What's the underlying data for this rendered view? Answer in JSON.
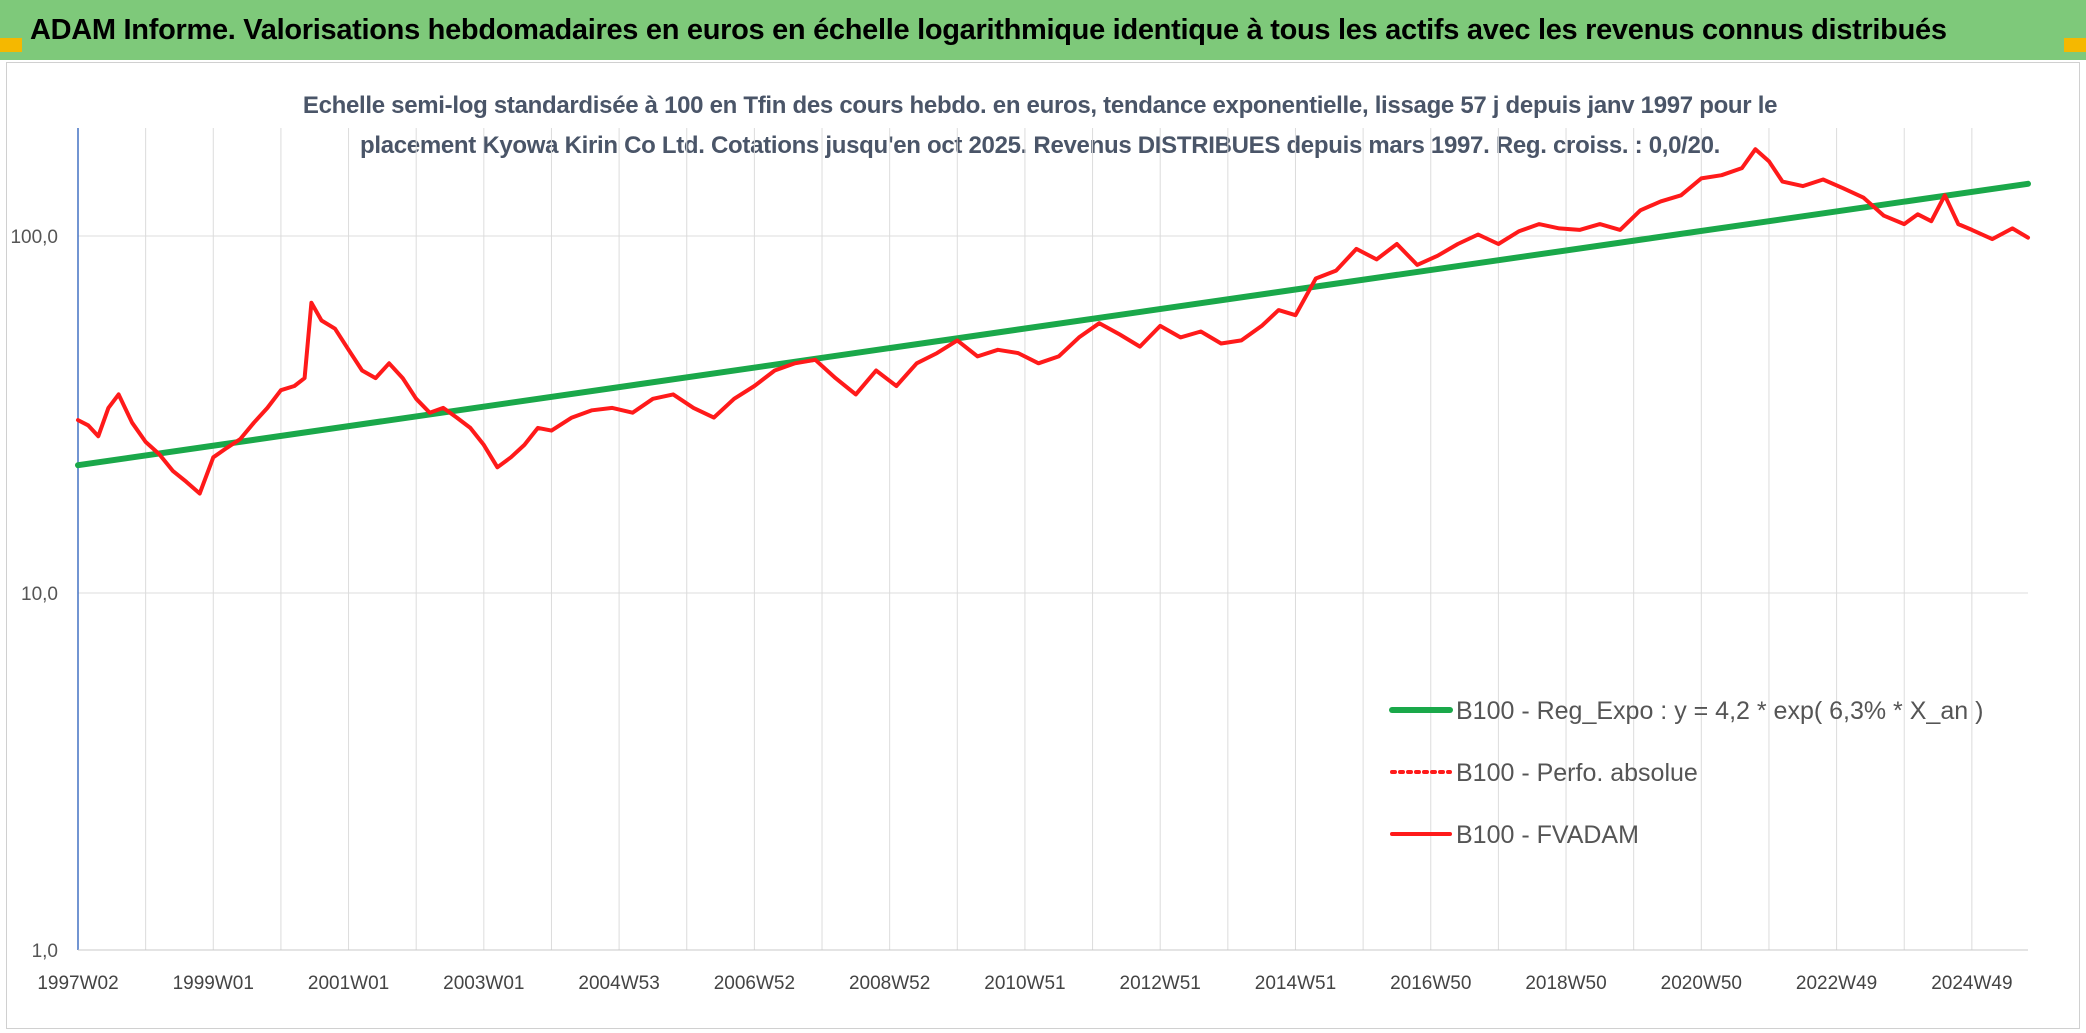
{
  "header": {
    "title": "ADAM Informe. Valorisations hebdomadaires en euros en échelle logarithmique identique à tous les actifs avec les revenus connus distribués"
  },
  "chart_data": {
    "type": "line",
    "title_line1": "Echelle semi-log standardisée à 100 en Tfin des cours hebdo. en euros, tendance exponentielle, lissage 57 j depuis janv 1997 pour le",
    "title_line2": "placement Kyowa Kirin Co Ltd. Cotations jusqu'en oct 2025. Revenus DISTRIBUES depuis mars 1997. Reg. croiss. : 0,0/20.",
    "y_scale": "log",
    "ylim": [
      1,
      200
    ],
    "xlim": [
      1997.0,
      2025.83
    ],
    "y_ticks": [
      {
        "value": 1,
        "label": "1,0"
      },
      {
        "value": 10,
        "label": "10,0"
      },
      {
        "value": 100,
        "label": "100,0"
      }
    ],
    "x_ticks": [
      {
        "value": 1997.0,
        "label": "1997W02"
      },
      {
        "value": 1999.0,
        "label": "1999W01"
      },
      {
        "value": 2001.0,
        "label": "2001W01"
      },
      {
        "value": 2003.0,
        "label": "2003W01"
      },
      {
        "value": 2005.0,
        "label": "2004W53"
      },
      {
        "value": 2007.0,
        "label": "2006W52"
      },
      {
        "value": 2009.0,
        "label": "2008W52"
      },
      {
        "value": 2011.0,
        "label": "2010W51"
      },
      {
        "value": 2013.0,
        "label": "2012W51"
      },
      {
        "value": 2015.0,
        "label": "2014W51"
      },
      {
        "value": 2017.0,
        "label": "2016W50"
      },
      {
        "value": 2019.0,
        "label": "2018W50"
      },
      {
        "value": 2021.0,
        "label": "2020W50"
      },
      {
        "value": 2023.0,
        "label": "2022W49"
      },
      {
        "value": 2025.0,
        "label": "2024W49"
      }
    ],
    "grid": true,
    "legend_position": "bottom-right",
    "series": [
      {
        "name": "B100 - Reg_Expo : y = 4,2 * exp( 6,3% *  X_an )",
        "color": "#1aa84a",
        "style": "solid",
        "x": [
          1997.0,
          2025.83
        ],
        "y": [
          22.8,
          140
        ]
      },
      {
        "name": "B100 - Perfo. absolue",
        "color": "#ff1a1a",
        "style": "dotted",
        "x": [],
        "y": []
      },
      {
        "name": "B100 - FVADAM",
        "color": "#ff1a1a",
        "style": "solid",
        "x": [
          1997.0,
          1997.15,
          1997.3,
          1997.45,
          1997.6,
          1997.8,
          1998.0,
          1998.2,
          1998.4,
          1998.6,
          1998.8,
          1999.0,
          1999.2,
          1999.4,
          1999.6,
          1999.8,
          2000.0,
          2000.2,
          2000.35,
          2000.45,
          2000.6,
          2000.8,
          2001.0,
          2001.2,
          2001.4,
          2001.6,
          2001.8,
          2002.0,
          2002.2,
          2002.4,
          2002.6,
          2002.8,
          2003.0,
          2003.2,
          2003.4,
          2003.6,
          2003.8,
          2004.0,
          2004.3,
          2004.6,
          2004.9,
          2005.2,
          2005.5,
          2005.8,
          2006.1,
          2006.4,
          2006.7,
          2007.0,
          2007.3,
          2007.6,
          2007.9,
          2008.2,
          2008.5,
          2008.8,
          2009.1,
          2009.4,
          2009.7,
          2010.0,
          2010.3,
          2010.6,
          2010.9,
          2011.2,
          2011.5,
          2011.8,
          2012.1,
          2012.4,
          2012.7,
          2013.0,
          2013.3,
          2013.6,
          2013.9,
          2014.2,
          2014.5,
          2014.75,
          2015.0,
          2015.3,
          2015.6,
          2015.9,
          2016.2,
          2016.5,
          2016.8,
          2017.1,
          2017.4,
          2017.7,
          2018.0,
          2018.3,
          2018.6,
          2018.9,
          2019.2,
          2019.5,
          2019.8,
          2020.1,
          2020.4,
          2020.7,
          2021.0,
          2021.3,
          2021.6,
          2021.8,
          2022.0,
          2022.2,
          2022.5,
          2022.8,
          2023.1,
          2023.4,
          2023.7,
          2024.0,
          2024.2,
          2024.4,
          2024.6,
          2024.8,
          2025.0,
          2025.3,
          2025.6,
          2025.83
        ],
        "y": [
          30.5,
          29.5,
          27.5,
          33.0,
          36.0,
          30.0,
          26.5,
          24.5,
          22.0,
          20.5,
          19.0,
          24.0,
          25.5,
          27.0,
          30.0,
          33.0,
          37.0,
          38.0,
          40.0,
          65.0,
          58.0,
          55.0,
          48.0,
          42.0,
          40.0,
          44.0,
          40.0,
          35.0,
          32.0,
          33.0,
          31.0,
          29.0,
          26.0,
          22.5,
          24.0,
          26.0,
          29.0,
          28.5,
          31.0,
          32.5,
          33.0,
          32.0,
          35.0,
          36.0,
          33.0,
          31.0,
          35.0,
          38.0,
          42.0,
          44.0,
          45.0,
          40.0,
          36.0,
          42.0,
          38.0,
          44.0,
          47.0,
          51.0,
          46.0,
          48.0,
          47.0,
          44.0,
          46.0,
          52.0,
          57.0,
          53.0,
          49.0,
          56.0,
          52.0,
          54.0,
          50.0,
          51.0,
          56.0,
          62.0,
          60.0,
          76.0,
          80.0,
          92.0,
          86.0,
          95.0,
          83.0,
          88.0,
          95.0,
          101.0,
          95.0,
          103.0,
          108.0,
          105.0,
          104.0,
          108.0,
          104.0,
          118.0,
          125.0,
          130.0,
          145.0,
          148.0,
          155.0,
          175.0,
          162.0,
          142.0,
          138.0,
          144.0,
          136.0,
          128.0,
          114.0,
          108.0,
          115.0,
          110.0,
          130.0,
          108.0,
          104.0,
          98.0,
          105.0,
          99.0
        ]
      }
    ]
  }
}
